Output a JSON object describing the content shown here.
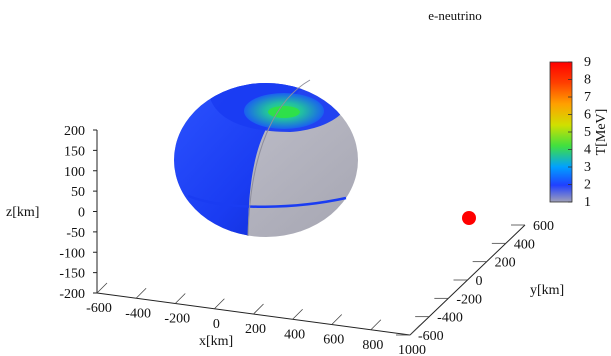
{
  "chart_data": {
    "type": "surface3d",
    "title": "e-neutrino",
    "xlabel": "x[km]",
    "ylabel": "y[km]",
    "zlabel": "z[km]",
    "x_ticks": [
      "-600",
      "-400",
      "-200",
      "0",
      "200",
      "400",
      "600",
      "800",
      "1000"
    ],
    "y_ticks": [
      "-600",
      "-400",
      "-200",
      "0",
      "200",
      "400",
      "600"
    ],
    "z_ticks": [
      "200",
      "150",
      "100",
      "50",
      "0",
      "-50",
      "-100",
      "-150",
      "-200"
    ],
    "xlim": [
      -600,
      1000
    ],
    "ylim": [
      -600,
      600
    ],
    "zlim": [
      -200,
      200
    ],
    "colorbar": {
      "label": "T[MeV]",
      "range": [
        1,
        9
      ],
      "ticks": [
        "9",
        "8",
        "7",
        "6",
        "5",
        "4",
        "3",
        "2",
        "1"
      ],
      "colors": [
        "#a0a0b8",
        "#2040ff",
        "#00a0ff",
        "#40e040",
        "#d0e000",
        "#ffa000",
        "#ff4000",
        "#ff0000"
      ]
    },
    "torus": {
      "surface_temperature_mev_range": [
        1,
        2
      ],
      "inner_hole_temperature_mev": 3.6,
      "cutaway_color": "#b0b0bc",
      "surface_color": "#1a3cf2",
      "hole_color": "#22d030"
    },
    "marker": {
      "label": "",
      "color": "#ff0000",
      "temperature_mev": 9
    }
  }
}
